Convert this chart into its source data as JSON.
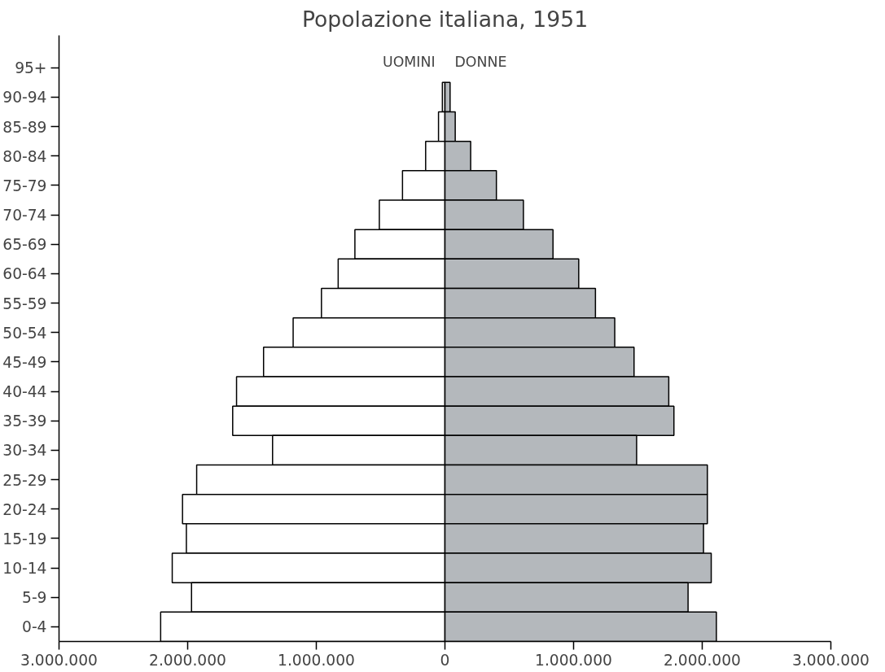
{
  "chart_data": {
    "type": "bar",
    "orientation": "horizontal",
    "title": "Popolazione italiana, 1951",
    "categories": [
      "95+",
      "90-94",
      "85-89",
      "80-84",
      "75-79",
      "70-74",
      "65-69",
      "60-64",
      "55-59",
      "50-54",
      "45-49",
      "40-44",
      "35-39",
      "30-34",
      "25-29",
      "20-24",
      "15-19",
      "10-14",
      "5-9",
      "0-4"
    ],
    "series": [
      {
        "name": "UOMINI",
        "color": "#ffffff",
        "values": [
          0,
          -20000,
          -50000,
          -150000,
          -330000,
          -510000,
          -700000,
          -830000,
          -960000,
          -1180000,
          -1410000,
          -1620000,
          -1650000,
          -1340000,
          -1930000,
          -2040000,
          -2010000,
          -2120000,
          -1970000,
          -2210000
        ]
      },
      {
        "name": "DONNE",
        "color": "#b4b8bc",
        "values": [
          0,
          40000,
          80000,
          200000,
          400000,
          610000,
          840000,
          1040000,
          1170000,
          1320000,
          1470000,
          1740000,
          1780000,
          1490000,
          2040000,
          2040000,
          2010000,
          2070000,
          1890000,
          2110000
        ]
      }
    ],
    "xlim": [
      -3000000,
      3000000
    ],
    "xticks": [
      {
        "value": -3000000,
        "label": "3.000.000"
      },
      {
        "value": -2000000,
        "label": "2.000.000"
      },
      {
        "value": -1000000,
        "label": "1.000.000"
      },
      0,
      {
        "value": 1000000,
        "label": "1.000.000"
      },
      {
        "value": 2000000,
        "label": "2.000.000"
      },
      {
        "value": 3000000,
        "label": "3.000.000"
      }
    ],
    "stacked": true,
    "grid": false,
    "legend": false
  }
}
